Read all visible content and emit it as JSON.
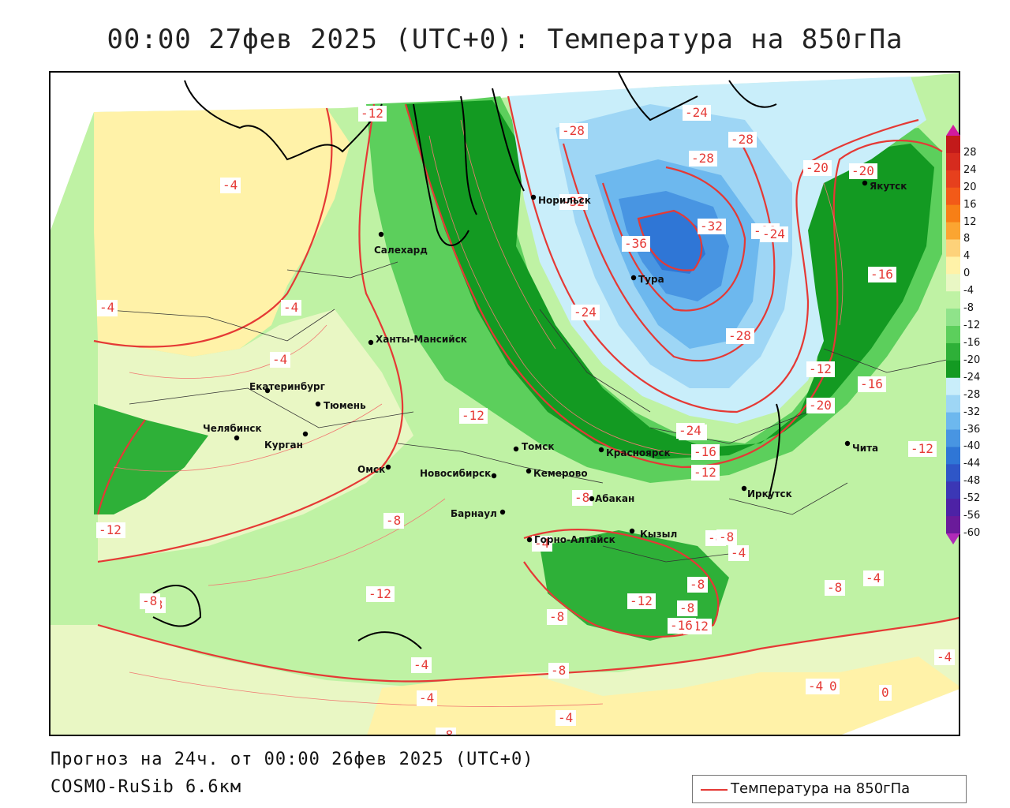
{
  "title": "00:00 27фев 2025 (UTC+0): Температура на 850гПа",
  "footer": {
    "forecast": "Прогноз на 24ч. от 00:00 26фев 2025 (UTC+0)",
    "model": "COSMO-RuSib 6.6км"
  },
  "legend": {
    "label": "Температура на 850гПа",
    "line_color": "#e53935"
  },
  "colorbar": {
    "levels": [
      "28",
      "24",
      "20",
      "16",
      "12",
      "8",
      "4",
      "0",
      "-4",
      "-8",
      "-12",
      "-16",
      "-20",
      "-24",
      "-28",
      "-32",
      "-36",
      "-40",
      "-44",
      "-48",
      "-52",
      "-56",
      "-60"
    ],
    "colors": [
      "#c21a1a",
      "#d62b1e",
      "#e6401d",
      "#f25a18",
      "#f77f16",
      "#fba531",
      "#fdd27a",
      "#fff2a8",
      "#e9f7c4",
      "#bff2a4",
      "#8fe38a",
      "#5ccf5c",
      "#2eb038",
      "#139a22",
      "#c9eefa",
      "#9ed6f5",
      "#6db8ee",
      "#4895e2",
      "#2f76d6",
      "#2e56c7",
      "#3b37b5",
      "#4d22a5",
      "#6a1b9a"
    ]
  },
  "cities": [
    {
      "name": "Норильск"
    },
    {
      "name": "Якутск"
    },
    {
      "name": "Салехард"
    },
    {
      "name": "Тура"
    },
    {
      "name": "Ханты-Мансийск"
    },
    {
      "name": "Екатеринбург"
    },
    {
      "name": "Тюмень"
    },
    {
      "name": "Челябинск"
    },
    {
      "name": "Курган"
    },
    {
      "name": "Омск"
    },
    {
      "name": "Новосибирск"
    },
    {
      "name": "Томск"
    },
    {
      "name": "Кемерово"
    },
    {
      "name": "Красноярск"
    },
    {
      "name": "Барнаул"
    },
    {
      "name": "Абакан"
    },
    {
      "name": "Горно-Алтайск"
    },
    {
      "name": "Кызыл"
    },
    {
      "name": "Иркутск"
    },
    {
      "name": "Чита"
    }
  ],
  "isotherm_labels": [
    "-12",
    "-4",
    "-4",
    "-4",
    "-4",
    "-4",
    "-16",
    "-8",
    "-12",
    "-8",
    "-8",
    "-12",
    "-20",
    "-28",
    "-32",
    "-36",
    "-32",
    "-28",
    "-24",
    "-24",
    "-28",
    "-24",
    "-28",
    "-28",
    "-24",
    "-20",
    "-16",
    "-20",
    "-16",
    "-12",
    "-12",
    "-24",
    "-16",
    "-12",
    "-8",
    "-8",
    "-8",
    "-12",
    "-8",
    "-4",
    "-8",
    "-4",
    "-8",
    "-12",
    "-16",
    "-12",
    "-8",
    "-4",
    "-4",
    "-8",
    "-4",
    "0",
    "-4",
    "-4",
    "-8",
    "-4",
    "0",
    "-4"
  ],
  "meta_colors": {
    "isotherm": "#e53935",
    "boundary": "#000000"
  }
}
